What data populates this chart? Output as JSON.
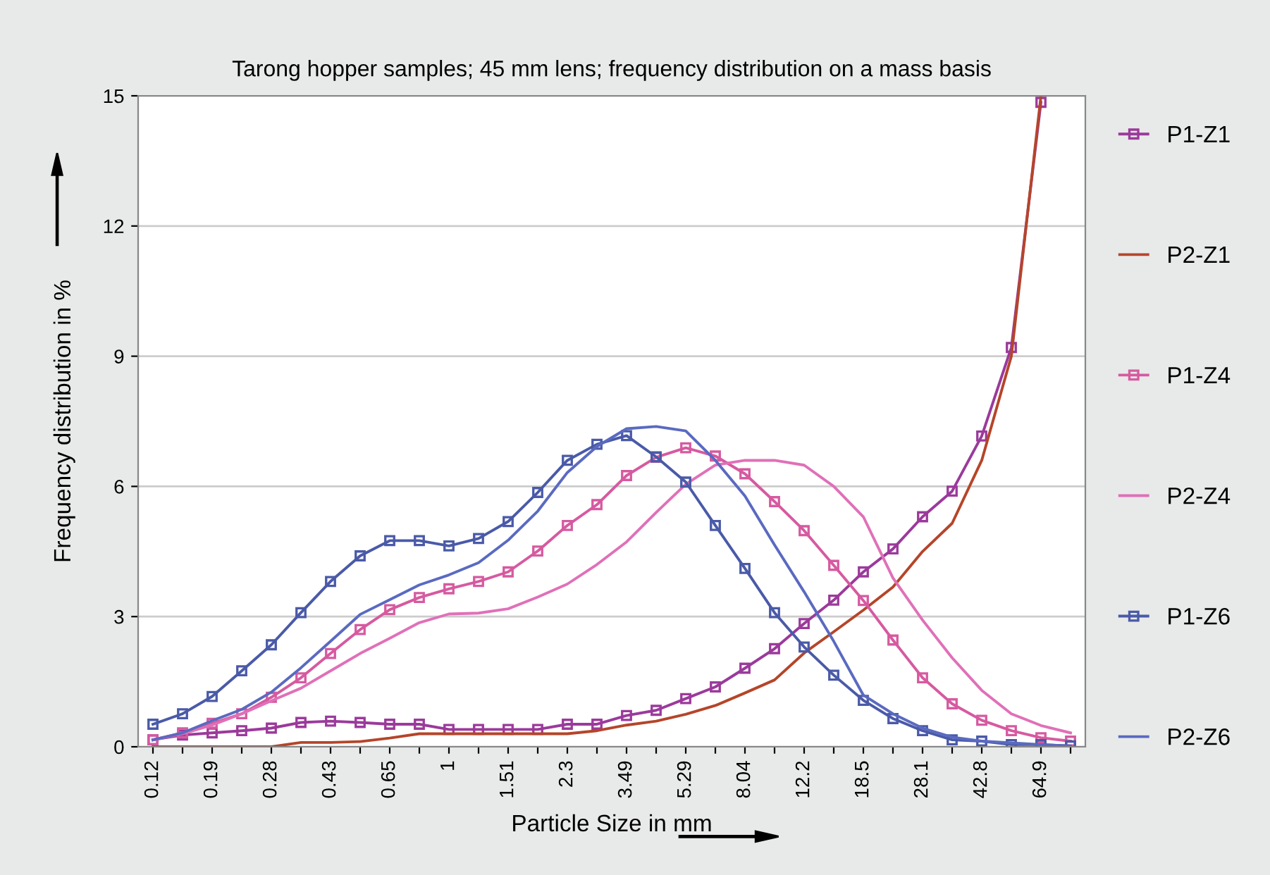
{
  "chart_data": {
    "type": "line",
    "title": "Tarong hopper samples; 45 mm lens; frequency distribution on a mass basis",
    "xlabel": "Particle Size in mm",
    "ylabel": "Frequency distribution in %",
    "categories": [
      "0.12",
      null,
      "0.19",
      null,
      "0.28",
      null,
      "0.43",
      null,
      "0.65",
      null,
      "1",
      null,
      "1.51",
      null,
      "2.3",
      null,
      "3.49",
      null,
      "5.29",
      null,
      "8.04",
      null,
      "12.2",
      null,
      "18.5",
      null,
      "28.1",
      null,
      "42.8",
      null,
      "64.9",
      null
    ],
    "series": [
      {
        "name": "P1-Z1",
        "color": "#9b3a9b",
        "marker": "square",
        "values": [
          0.16,
          0.27,
          0.32,
          0.37,
          0.43,
          0.56,
          0.59,
          0.56,
          0.52,
          0.52,
          0.4,
          0.4,
          0.4,
          0.4,
          0.52,
          0.52,
          0.72,
          0.84,
          1.11,
          1.38,
          1.81,
          2.26,
          2.84,
          3.38,
          4.03,
          4.56,
          5.3,
          5.89,
          7.16,
          9.2,
          14.85,
          null
        ]
      },
      {
        "name": "P2-Z1",
        "color": "#b5452a",
        "marker": "none",
        "values": [
          0,
          0,
          0,
          0,
          0,
          0.1,
          0.1,
          0.12,
          0.2,
          0.3,
          0.3,
          0.3,
          0.3,
          0.3,
          0.3,
          0.37,
          0.5,
          0.59,
          0.75,
          0.95,
          1.24,
          1.54,
          2.16,
          2.65,
          3.15,
          3.68,
          4.5,
          5.15,
          6.6,
          9.0,
          15,
          null
        ]
      },
      {
        "name": "P1-Z4",
        "color": "#d65aa0",
        "marker": "square",
        "values": [
          0.16,
          0.32,
          0.54,
          0.76,
          1.14,
          1.59,
          2.15,
          2.7,
          3.16,
          3.44,
          3.64,
          3.81,
          4.03,
          4.51,
          5.1,
          5.58,
          6.25,
          6.67,
          6.89,
          6.7,
          6.29,
          5.65,
          4.98,
          4.18,
          3.37,
          2.46,
          1.59,
          0.99,
          0.61,
          0.37,
          0.21,
          0.13
        ]
      },
      {
        "name": "P2-Z4",
        "color": "#e070b8",
        "marker": "none",
        "values": [
          0.16,
          0.3,
          0.5,
          0.76,
          1.06,
          1.35,
          1.75,
          2.15,
          2.5,
          2.86,
          3.06,
          3.08,
          3.18,
          3.45,
          3.75,
          4.2,
          4.72,
          5.4,
          6.05,
          6.49,
          6.6,
          6.6,
          6.49,
          6.0,
          5.3,
          3.89,
          2.92,
          2.05,
          1.3,
          0.76,
          0.49,
          0.32
        ]
      },
      {
        "name": "P1-Z6",
        "color": "#4a5aa8",
        "marker": "square",
        "values": [
          0.52,
          0.76,
          1.16,
          1.75,
          2.35,
          3.09,
          3.81,
          4.4,
          4.75,
          4.75,
          4.63,
          4.8,
          5.19,
          5.86,
          6.6,
          6.97,
          7.17,
          6.68,
          6.1,
          5.1,
          4.11,
          3.09,
          2.3,
          1.65,
          1.07,
          0.65,
          0.37,
          0.16,
          0.13,
          0.05,
          0.05,
          0.02
        ]
      },
      {
        "name": "P2-Z6",
        "color": "#5a6ac0",
        "marker": "none",
        "values": [
          0.16,
          0.32,
          0.6,
          0.86,
          1.26,
          1.82,
          2.43,
          3.05,
          3.39,
          3.73,
          3.96,
          4.24,
          4.76,
          5.43,
          6.32,
          6.92,
          7.33,
          7.38,
          7.28,
          6.6,
          5.78,
          4.65,
          3.57,
          2.43,
          1.19,
          0.76,
          0.43,
          0.22,
          0.13,
          0.09,
          0.05,
          0.02
        ]
      }
    ],
    "ylim": [
      0,
      15
    ],
    "yticks": [
      0,
      3,
      6,
      9,
      12,
      15
    ],
    "grid": "y",
    "legend": "right"
  }
}
